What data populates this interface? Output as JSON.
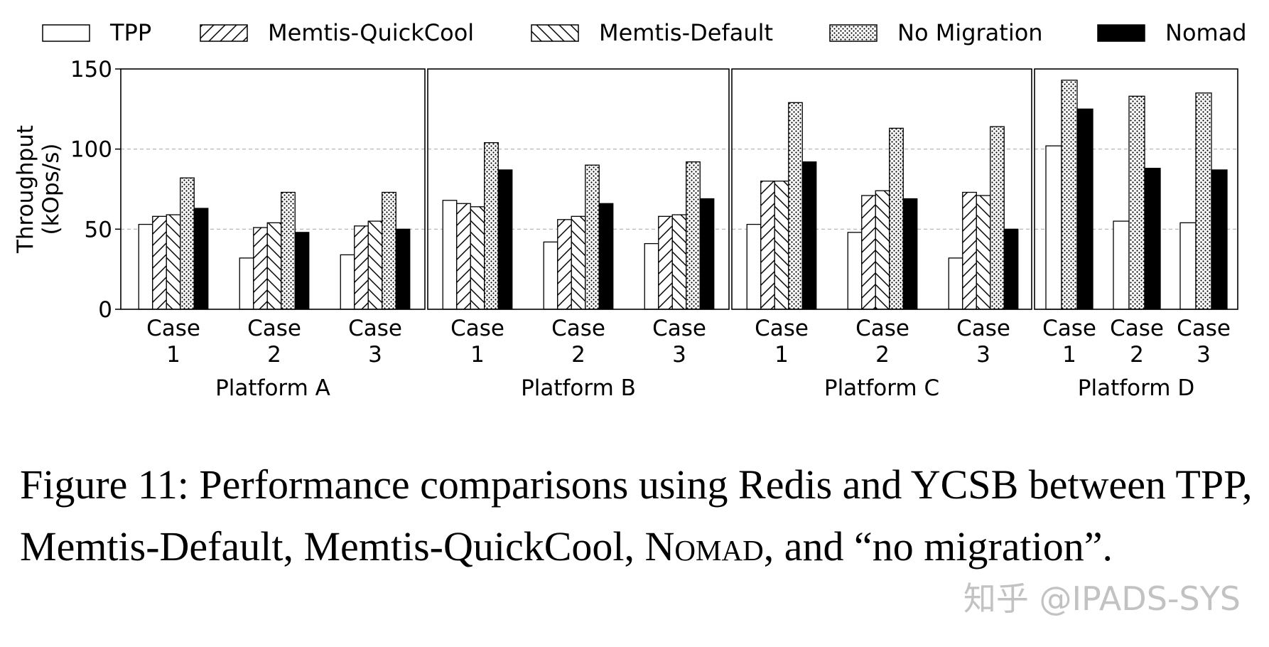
{
  "chart_data": {
    "type": "bar",
    "ylabel_line1": "Throughput",
    "ylabel_line2": "(kOps/s)",
    "ylim": [
      0,
      150
    ],
    "yticks": [
      0,
      50,
      100,
      150
    ],
    "grid": true,
    "legend_position": "top",
    "legend": [
      "TPP",
      "Memtis-QuickCool",
      "Memtis-Default",
      "No Migration",
      "Nomad"
    ],
    "series_styles": [
      {
        "name": "TPP",
        "pattern": "none"
      },
      {
        "name": "Memtis-QuickCool",
        "pattern": "forward-hatch"
      },
      {
        "name": "Memtis-Default",
        "pattern": "back-hatch"
      },
      {
        "name": "No Migration",
        "pattern": "dots"
      },
      {
        "name": "Nomad",
        "pattern": "solid"
      }
    ],
    "platforms": [
      {
        "name": "Platform A",
        "cases": [
          {
            "label1": "Case",
            "label2": "1",
            "values": [
              53,
              58,
              59,
              82,
              63
            ]
          },
          {
            "label1": "Case",
            "label2": "2",
            "values": [
              32,
              51,
              54,
              73,
              48
            ]
          },
          {
            "label1": "Case",
            "label2": "3",
            "values": [
              34,
              52,
              55,
              73,
              50
            ]
          }
        ]
      },
      {
        "name": "Platform B",
        "cases": [
          {
            "label1": "Case",
            "label2": "1",
            "values": [
              68,
              66,
              64,
              104,
              87
            ]
          },
          {
            "label1": "Case",
            "label2": "2",
            "values": [
              42,
              56,
              58,
              90,
              66
            ]
          },
          {
            "label1": "Case",
            "label2": "3",
            "values": [
              41,
              58,
              59,
              92,
              69
            ]
          }
        ]
      },
      {
        "name": "Platform C",
        "cases": [
          {
            "label1": "Case",
            "label2": "1",
            "values": [
              53,
              80,
              80,
              129,
              92
            ]
          },
          {
            "label1": "Case",
            "label2": "2",
            "values": [
              48,
              71,
              74,
              113,
              69
            ]
          },
          {
            "label1": "Case",
            "label2": "3",
            "values": [
              32,
              73,
              71,
              114,
              50
            ]
          }
        ]
      },
      {
        "name": "Platform D",
        "cases": [
          {
            "label1": "Case",
            "label2": "1",
            "values": [
              102,
              null,
              null,
              143,
              125
            ]
          },
          {
            "label1": "Case",
            "label2": "2",
            "values": [
              55,
              null,
              null,
              133,
              88
            ]
          },
          {
            "label1": "Case",
            "label2": "3",
            "values": [
              54,
              null,
              null,
              135,
              87
            ]
          }
        ]
      }
    ]
  },
  "caption": {
    "part1": "Figure 11: Performance comparisons using Redis and YCSB between TPP, Memtis-Default, Memtis-QuickCool, ",
    "nomad": "Nomad",
    "part2": ", and “no migration”."
  },
  "watermark": "知乎 @IPADS-SYS"
}
